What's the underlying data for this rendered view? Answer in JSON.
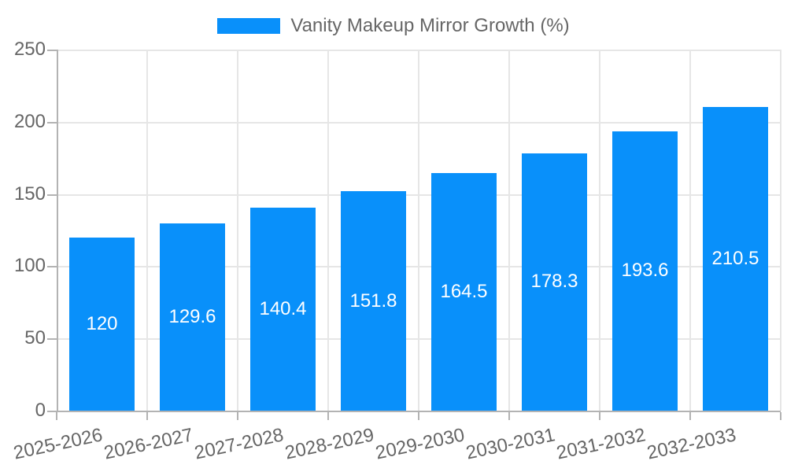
{
  "chart_data": {
    "type": "bar",
    "title": "Vanity Makeup Mirror Growth (%)",
    "legend": {
      "position": "top",
      "label": "Vanity Makeup Mirror Growth (%)"
    },
    "categories": [
      "2025-2026",
      "2026-2027",
      "2027-2028",
      "2028-2029",
      "2029-2030",
      "2030-2031",
      "2031-2032",
      "2032-2033"
    ],
    "values": [
      120,
      129.6,
      140.4,
      151.8,
      164.5,
      178.3,
      193.6,
      210.5
    ],
    "value_labels": [
      "120",
      "129.6",
      "140.4",
      "151.8",
      "164.5",
      "178.3",
      "193.6",
      "210.5"
    ],
    "xlabel": "",
    "ylabel": "",
    "ylim": [
      0,
      250
    ],
    "yticks": [
      0,
      50,
      100,
      150,
      200,
      250
    ],
    "grid": true,
    "x_tick_rotation_deg": -12,
    "colors": {
      "bar": "#0990fa",
      "grid": "#e6e6e6",
      "axis": "#b3b3b3",
      "tick_text": "#666666",
      "bar_label_text": "#ffffff"
    }
  }
}
